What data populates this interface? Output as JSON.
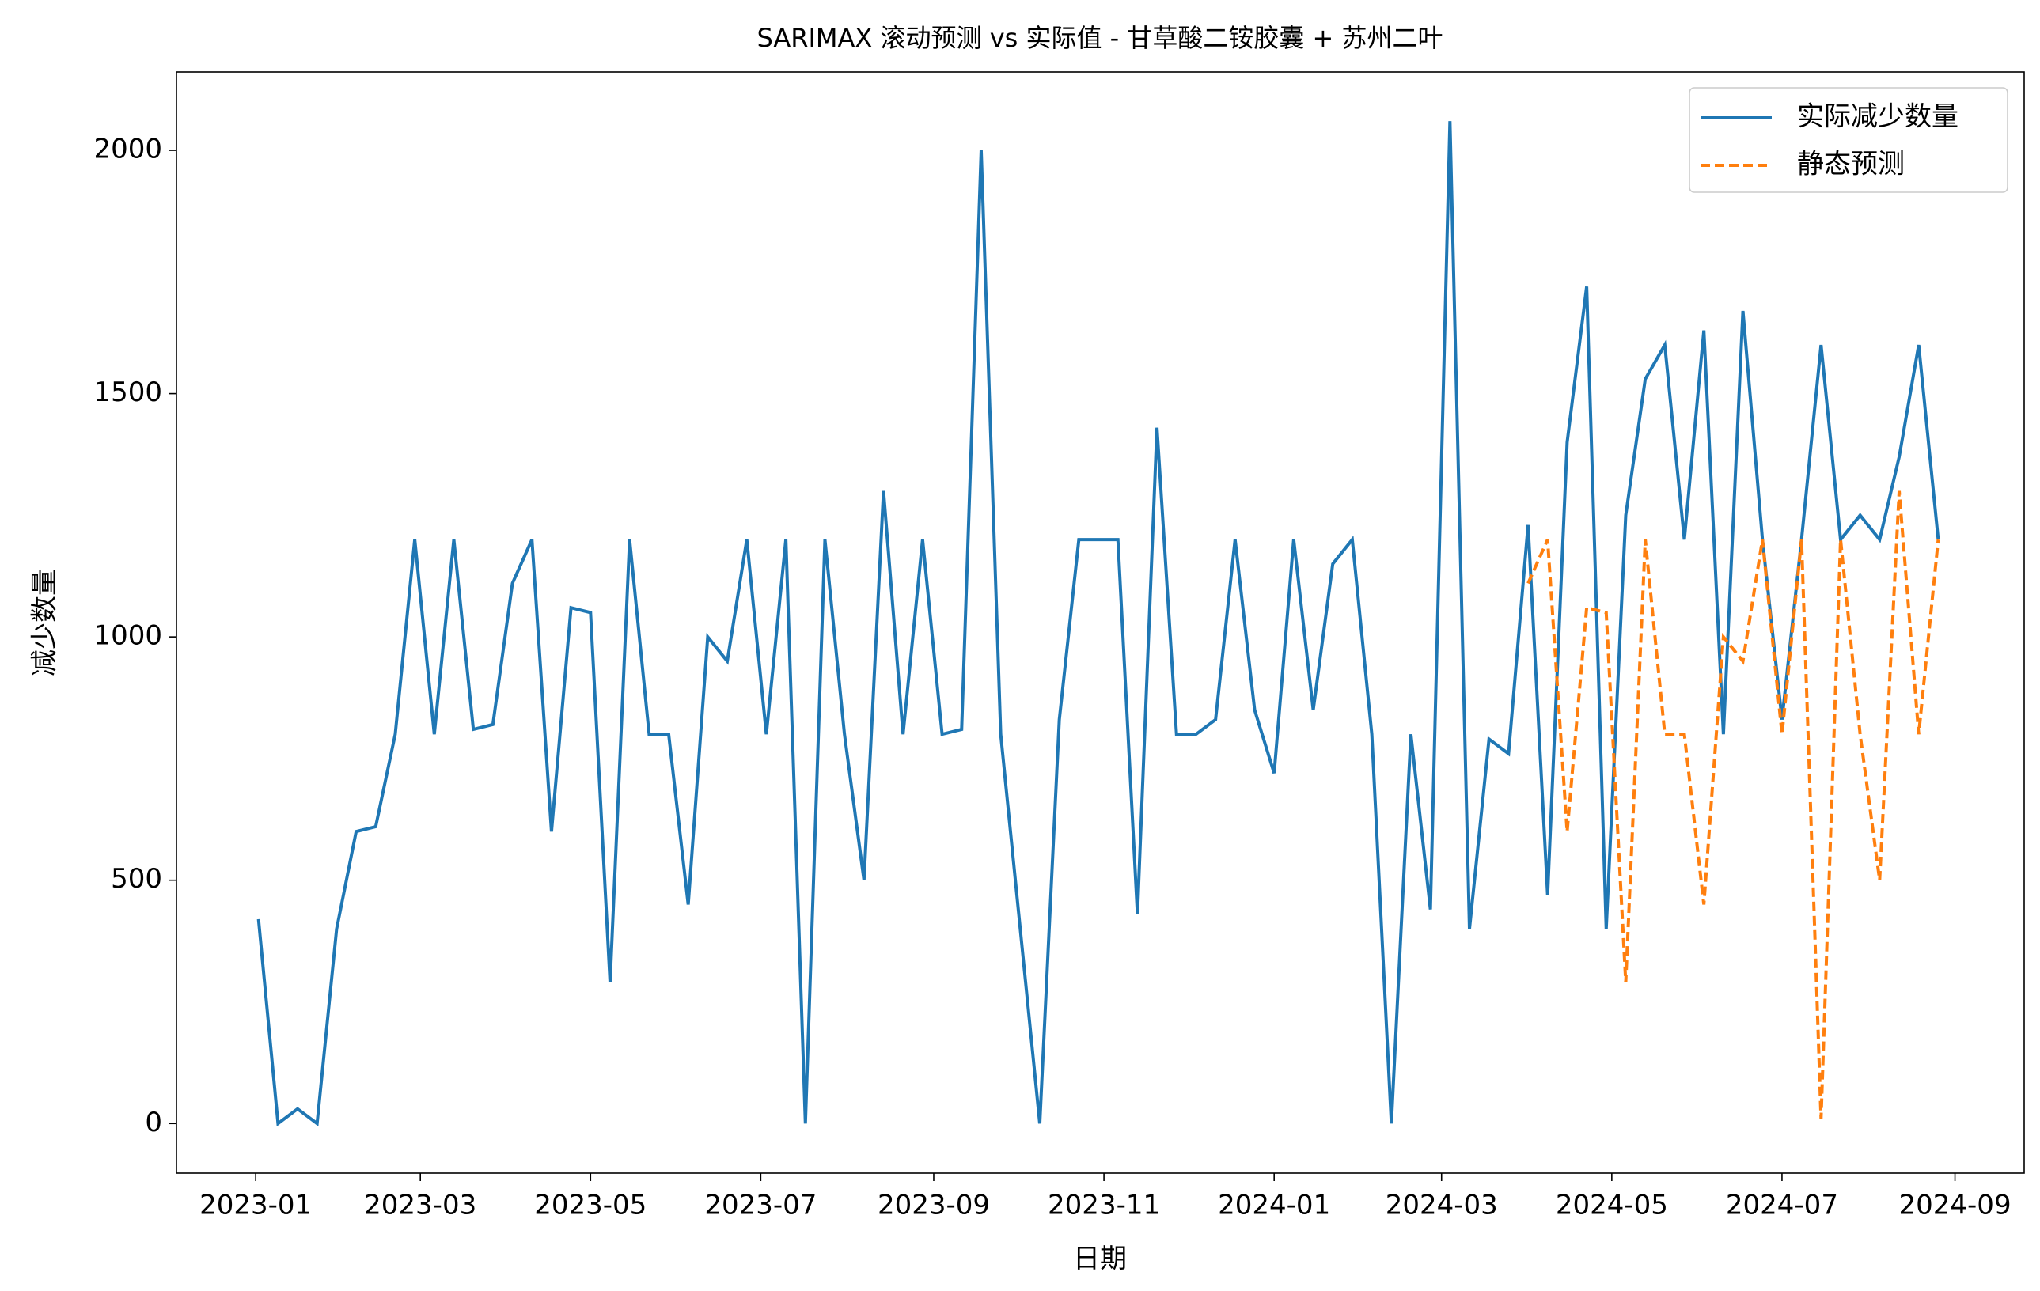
{
  "chart_data": {
    "type": "line",
    "title": "SARIMAX 滚动预测 vs 实际值 - 甘草酸二铵胶囊 + 苏州二叶",
    "x_label": "日期",
    "y_label": "减少数量",
    "categories": [
      null,
      null,
      null,
      null,
      null,
      null,
      null,
      null,
      null,
      null,
      null,
      null,
      null,
      null,
      null,
      null,
      null,
      null,
      null,
      null,
      null,
      null,
      null,
      null,
      null,
      null,
      null,
      null,
      null,
      null,
      null,
      null,
      null,
      null,
      null,
      null,
      null,
      null,
      null,
      null,
      null,
      null,
      null,
      null,
      null,
      null,
      null,
      null,
      null,
      null,
      null,
      null,
      null,
      null,
      null,
      null,
      null,
      null,
      null,
      null,
      null,
      null,
      null,
      null,
      null,
      null,
      null,
      null,
      null,
      null,
      null,
      null,
      null,
      null,
      null,
      null,
      null,
      null,
      null,
      null,
      null,
      null,
      null,
      null,
      null,
      null,
      null
    ],
    "series": [
      {
        "name": "实际减少数量",
        "color": "#1f77b4",
        "linestyle": "solid",
        "values": [
          420,
          0,
          30,
          0,
          400,
          600,
          610,
          800,
          1200,
          800,
          1200,
          810,
          820,
          1110,
          1200,
          600,
          1060,
          1050,
          290,
          1200,
          800,
          800,
          450,
          1000,
          950,
          1200,
          800,
          1200,
          0,
          1200,
          800,
          500,
          1300,
          800,
          1200,
          800,
          810,
          2000,
          800,
          400,
          0,
          830,
          1200,
          1200,
          1200,
          430,
          1430,
          800,
          800,
          830,
          1200,
          850,
          720,
          1200,
          850,
          1150,
          1200,
          800,
          0,
          800,
          440,
          2060,
          400,
          790,
          760,
          1230,
          470,
          1400,
          1720,
          400,
          1250,
          1530,
          1600,
          1200,
          1630,
          800,
          1670,
          1200,
          830,
          1200,
          1600,
          1200,
          1250,
          1200,
          1370,
          1600,
          1200
        ]
      },
      {
        "name": "静态预测",
        "color": "#ff7f0e",
        "linestyle": "dashed",
        "values": [
          null,
          null,
          null,
          null,
          null,
          null,
          null,
          null,
          null,
          null,
          null,
          null,
          null,
          null,
          null,
          null,
          null,
          null,
          null,
          null,
          null,
          null,
          null,
          null,
          null,
          null,
          null,
          null,
          null,
          null,
          null,
          null,
          null,
          null,
          null,
          null,
          null,
          null,
          null,
          null,
          null,
          null,
          null,
          null,
          null,
          null,
          null,
          null,
          null,
          null,
          null,
          null,
          null,
          null,
          null,
          null,
          null,
          null,
          null,
          null,
          null,
          null,
          null,
          null,
          null,
          1110,
          1200,
          600,
          1060,
          1050,
          290,
          1200,
          800,
          800,
          450,
          1000,
          950,
          1200,
          800,
          1200,
          10,
          1200,
          800,
          500,
          1300,
          800,
          1200
        ]
      }
    ],
    "xlim": [
      -4.2,
      90.4
    ],
    "xticks": [
      {
        "value": -0.143,
        "label": "2023-01"
      },
      {
        "value": 8.286,
        "label": "2023-03"
      },
      {
        "value": 17.0,
        "label": "2023-05"
      },
      {
        "value": 25.714,
        "label": "2023-07"
      },
      {
        "value": 34.571,
        "label": "2023-09"
      },
      {
        "value": 43.286,
        "label": "2023-11"
      },
      {
        "value": 52.0,
        "label": "2024-01"
      },
      {
        "value": 60.571,
        "label": "2024-03"
      },
      {
        "value": 69.286,
        "label": "2024-05"
      },
      {
        "value": 78.0,
        "label": "2024-07"
      },
      {
        "value": 86.857,
        "label": "2024-09"
      }
    ],
    "ylim": [
      -102,
      2161
    ],
    "yticks": [
      0,
      500,
      1000,
      1500,
      2000
    ],
    "grid": false,
    "legend": "upper right"
  }
}
